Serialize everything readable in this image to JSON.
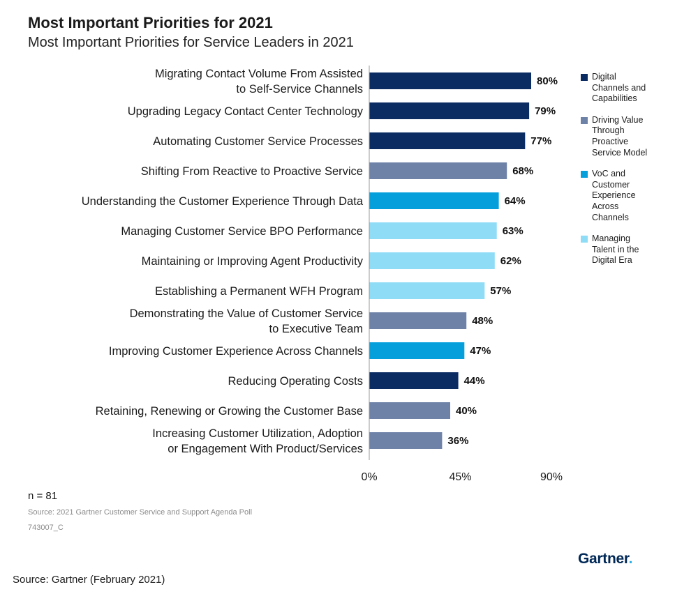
{
  "title": "Most Important Priorities for 2021",
  "subtitle": "Most Important Priorities for Service Leaders in 2021",
  "chart_data": {
    "type": "bar",
    "orientation": "horizontal",
    "title": "Most Important Priorities for 2021",
    "subtitle": "Most Important Priorities for Service Leaders in 2021",
    "xlabel": "",
    "ylabel": "",
    "xlim": [
      0,
      90
    ],
    "ticks": [
      "0%",
      "45%",
      "90%"
    ],
    "tick_values": [
      0,
      45,
      90
    ],
    "grid": false,
    "legend_position": "right",
    "value_suffix": "%",
    "categories": [
      [
        "Migrating Contact Volume From Assisted",
        "to Self-Service Channels"
      ],
      [
        "Upgrading Legacy Contact Center Technology"
      ],
      [
        "Automating Customer Service Processes"
      ],
      [
        "Shifting From Reactive to Proactive Service"
      ],
      [
        "Understanding the Customer Experience Through Data"
      ],
      [
        "Managing Customer Service BPO Performance"
      ],
      [
        "Maintaining or Improving Agent Productivity"
      ],
      [
        "Establishing a Permanent WFH Program"
      ],
      [
        "Demonstrating the Value of Customer Service",
        "to Executive Team"
      ],
      [
        "Improving Customer Experience Across Channels"
      ],
      [
        "Reducing Operating Costs"
      ],
      [
        "Retaining, Renewing or Growing the Customer Base"
      ],
      [
        "Increasing Customer Utilization, Adoption",
        "or Engagement With Product/Services"
      ]
    ],
    "values": [
      80,
      79,
      77,
      68,
      64,
      63,
      62,
      57,
      48,
      47,
      44,
      40,
      36
    ],
    "groups": [
      0,
      0,
      0,
      1,
      2,
      3,
      3,
      3,
      1,
      2,
      0,
      1,
      1
    ],
    "legend": [
      {
        "lines": [
          "Digital",
          "Channels and",
          "Capabilities"
        ],
        "color": "#0a2c63"
      },
      {
        "lines": [
          "Driving Value",
          "Through",
          "Proactive",
          "Service Model"
        ],
        "color": "#6e82a8"
      },
      {
        "lines": [
          "VoC and",
          "Customer",
          "Experience",
          "Across",
          "Channels"
        ],
        "color": "#05a0dc"
      },
      {
        "lines": [
          "Managing",
          "Talent in the",
          "Digital Era"
        ],
        "color": "#8fdcf6"
      }
    ]
  },
  "notes": {
    "n": "n = 81",
    "source": "Source: 2021 Gartner Customer Service and Support Agenda Poll",
    "code": "743007_C"
  },
  "logo": {
    "text": "Gartner",
    "dot": "."
  },
  "footer": "Source: Gartner (February 2021)"
}
